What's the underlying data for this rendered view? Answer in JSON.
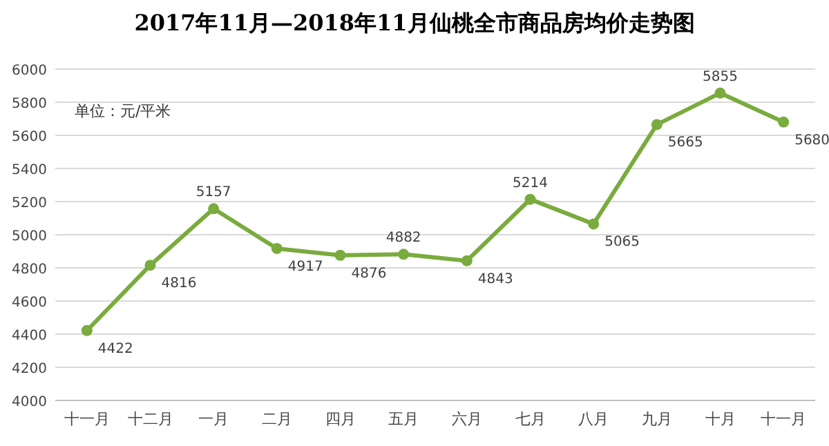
{
  "chart_data": {
    "type": "line",
    "title": "2017年11月—2018年11月仙桃全市商品房均价走势图",
    "annotations": [
      "单位：元/平米"
    ],
    "categories": [
      "十一月",
      "十二月",
      "一月",
      "二月",
      "四月",
      "五月",
      "六月",
      "七月",
      "八月",
      "九月",
      "十月",
      "十一月"
    ],
    "values": [
      4422,
      4816,
      5157,
      4917,
      4876,
      4882,
      4843,
      5214,
      5065,
      5665,
      5855,
      5680
    ],
    "color": "#7aab3e",
    "marker": "circle",
    "data_labels": true,
    "grid": "y",
    "ylim": [
      4000,
      6000
    ],
    "yticks": [
      4000,
      4200,
      4400,
      4600,
      4800,
      5000,
      5200,
      5400,
      5600,
      5800,
      6000
    ]
  }
}
